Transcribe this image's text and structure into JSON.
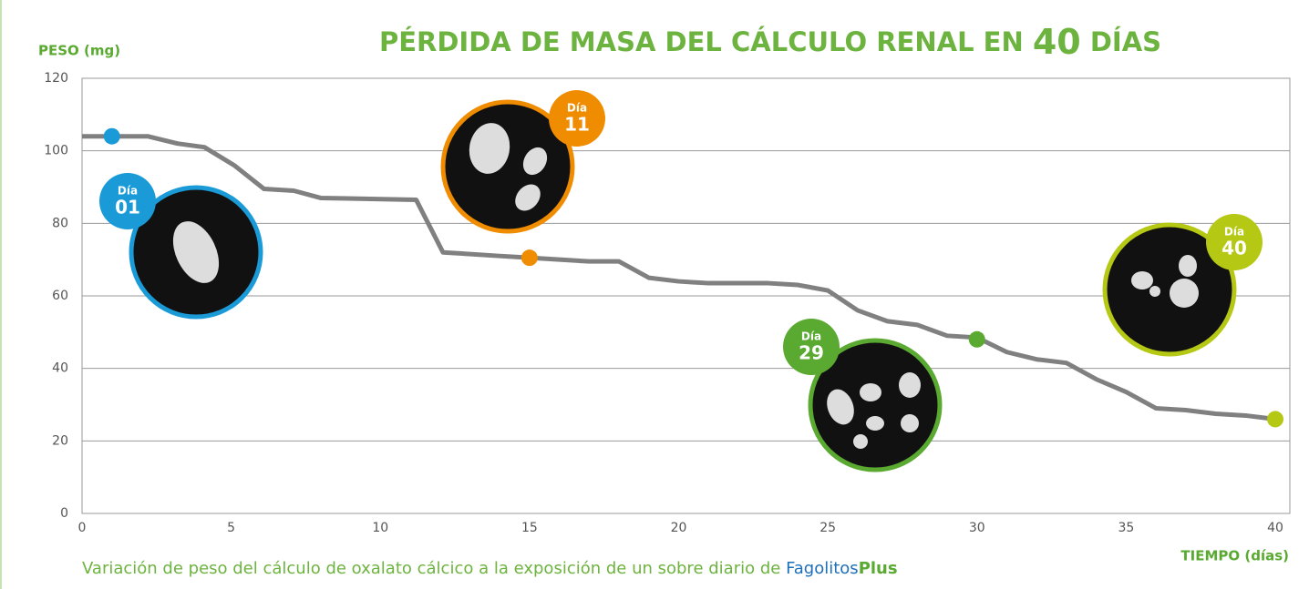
{
  "chart_data": {
    "type": "line",
    "title": [
      "PÉRDIDA DE MASA DEL CÁLCULO RENAL EN",
      "40",
      "DÍAS"
    ],
    "y_label": "PESO (mg)",
    "x_label": "TIEMPO (días)",
    "caption": "Variación de peso del cálculo de oxalato cálcico a la exposición de un sobre diario de",
    "brand": [
      "Fagolitos",
      "Plus"
    ],
    "x": [
      0,
      2.2,
      3.2,
      4.1,
      5.1,
      6.1,
      7.1,
      8,
      11.2,
      12.1,
      14,
      15,
      16,
      17,
      18,
      19,
      20,
      21,
      23,
      24,
      25,
      26,
      27,
      28,
      29,
      30,
      31,
      32,
      33,
      34,
      35,
      36,
      37,
      38,
      39,
      40
    ],
    "values": [
      104,
      104,
      102,
      101,
      96,
      89.5,
      89,
      87,
      86.5,
      72,
      71,
      70.5,
      70,
      69.5,
      69.5,
      65,
      64,
      63.5,
      63.5,
      63,
      61.5,
      56,
      53,
      52,
      49,
      48.5,
      44.5,
      42.5,
      41.5,
      37,
      33.5,
      29,
      28.5,
      27.5,
      27,
      26
    ],
    "color": "#808080",
    "markers": [
      {
        "label": "Día",
        "day": "01",
        "x": 1,
        "y": 104,
        "color": "#1a9bd7"
      },
      {
        "label": "Día",
        "day": "11",
        "x": 15,
        "y": 70.5,
        "color": "#f08c00"
      },
      {
        "label": "Día",
        "day": "29",
        "x": 30,
        "y": 48,
        "color": "#5aaa32"
      },
      {
        "label": "Día",
        "day": "40",
        "x": 40,
        "y": 26,
        "color": "#b5c814"
      }
    ],
    "xlim": [
      0,
      40
    ],
    "xticks": [
      0,
      5,
      10,
      15,
      20,
      25,
      30,
      35,
      40
    ],
    "ylim": [
      0,
      120
    ],
    "yticks": [
      0,
      20,
      40,
      60,
      80,
      100,
      120
    ],
    "grid": true
  }
}
